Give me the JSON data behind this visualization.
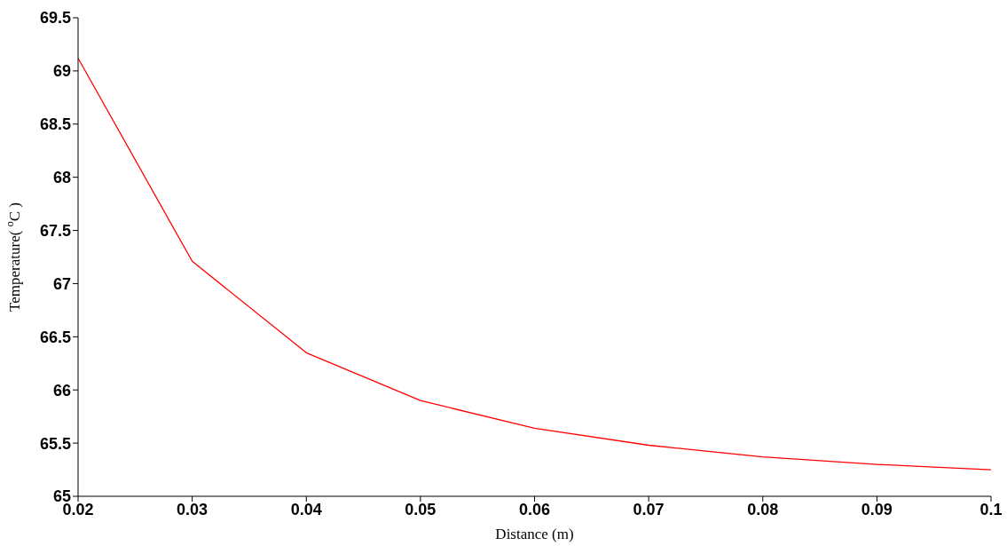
{
  "chart_data": {
    "type": "line",
    "xlabel": "Distance (m)",
    "ylabel": "Temperature( $^{o}$C )",
    "x": [
      0.02,
      0.03,
      0.04,
      0.05,
      0.06,
      0.07,
      0.08,
      0.09,
      0.1
    ],
    "series": [
      {
        "color": "#ff0000",
        "values": [
          69.12,
          67.21,
          66.35,
          65.9,
          65.64,
          65.48,
          65.37,
          65.3,
          65.25
        ]
      }
    ],
    "xlim": [
      0.02,
      0.1
    ],
    "xticks": [
      0.02,
      0.03,
      0.04,
      0.05,
      0.06,
      0.07,
      0.08,
      0.09,
      0.1
    ],
    "ylim": [
      65,
      69.5
    ],
    "yticks": [
      65,
      65.5,
      66,
      66.5,
      67,
      67.5,
      68,
      68.5,
      69,
      69.5
    ],
    "grid": false,
    "legend": false,
    "marker": "none",
    "line_style": "solid"
  }
}
